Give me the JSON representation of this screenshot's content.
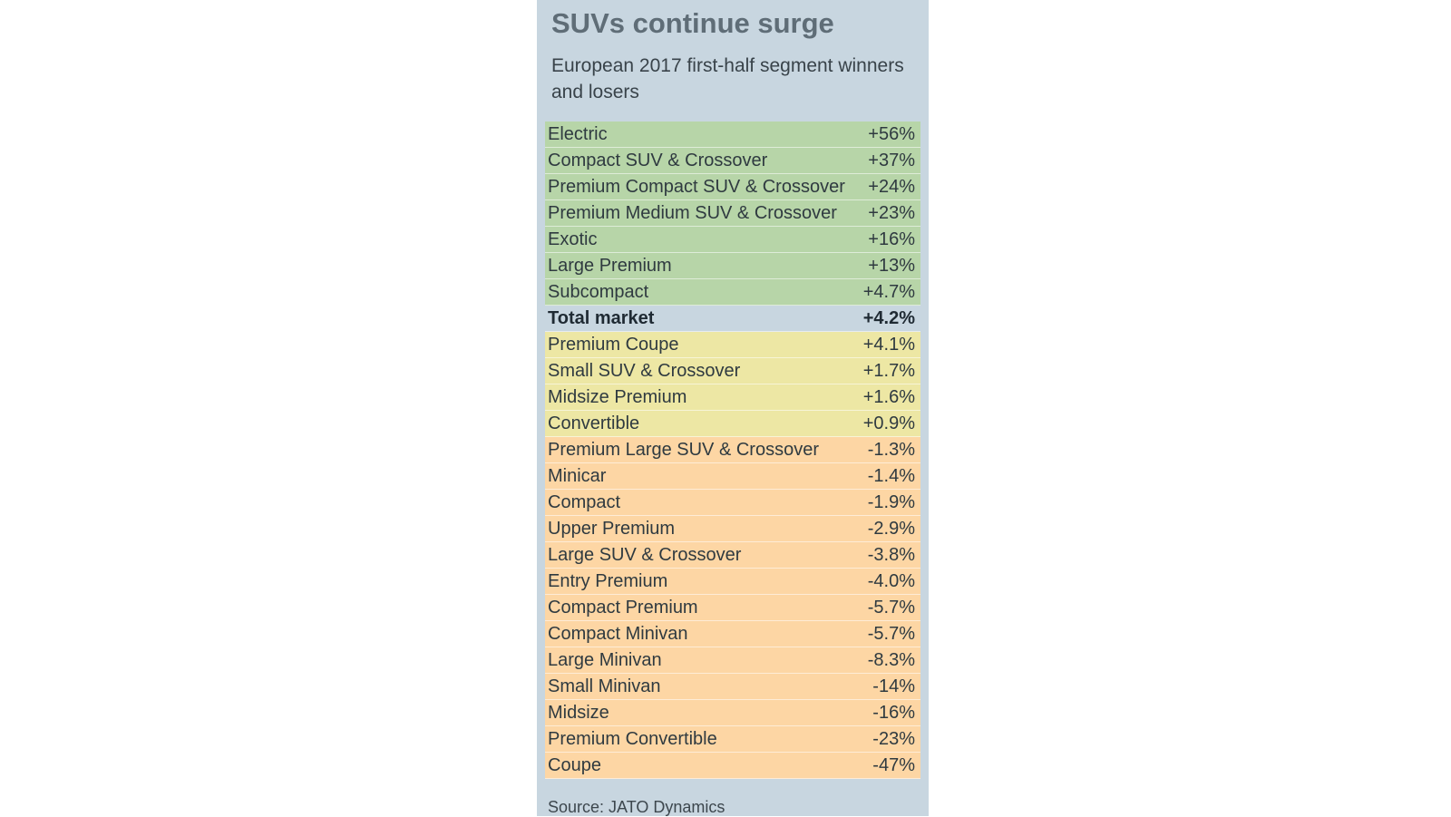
{
  "chart_data": {
    "type": "table",
    "title": "SUVs continue surge",
    "subtitle": "European 2017 first-half segment winners and losers",
    "source": "Source: JATO Dynamics",
    "colors": {
      "gain": "#b7d5a8",
      "small_gain": "#ede7a4",
      "loss": "#fdd6a4",
      "total": "#c8d6e0",
      "panel": "#c8d6e0"
    },
    "rows": [
      {
        "label": "Electric",
        "value": 56,
        "display": "+56%",
        "group": "green"
      },
      {
        "label": "Compact SUV & Crossover",
        "value": 37,
        "display": "+37%",
        "group": "green"
      },
      {
        "label": "Premium Compact SUV & Crossover",
        "value": 24,
        "display": "+24%",
        "group": "green"
      },
      {
        "label": "Premium Medium SUV & Crossover",
        "value": 23,
        "display": "+23%",
        "group": "green"
      },
      {
        "label": "Exotic",
        "value": 16,
        "display": "+16%",
        "group": "green"
      },
      {
        "label": "Large Premium",
        "value": 13,
        "display": "+13%",
        "group": "green"
      },
      {
        "label": "Subcompact",
        "value": 4.7,
        "display": "+4.7%",
        "group": "green"
      },
      {
        "label": "Total market",
        "value": 4.2,
        "display": "+4.2%",
        "group": "total"
      },
      {
        "label": "Premium Coupe",
        "value": 4.1,
        "display": "+4.1%",
        "group": "yellow"
      },
      {
        "label": "Small SUV & Crossover",
        "value": 1.7,
        "display": "+1.7%",
        "group": "yellow"
      },
      {
        "label": "Midsize Premium",
        "value": 1.6,
        "display": "+1.6%",
        "group": "yellow"
      },
      {
        "label": "Convertible",
        "value": 0.9,
        "display": "+0.9%",
        "group": "yellow"
      },
      {
        "label": "Premium Large SUV & Crossover",
        "value": -1.3,
        "display": "-1.3%",
        "group": "orange"
      },
      {
        "label": "Minicar",
        "value": -1.4,
        "display": "-1.4%",
        "group": "orange"
      },
      {
        "label": "Compact",
        "value": -1.9,
        "display": "-1.9%",
        "group": "orange"
      },
      {
        "label": "Upper Premium",
        "value": -2.9,
        "display": "-2.9%",
        "group": "orange"
      },
      {
        "label": "Large SUV & Crossover",
        "value": -3.8,
        "display": "-3.8%",
        "group": "orange"
      },
      {
        "label": "Entry Premium",
        "value": -4.0,
        "display": "-4.0%",
        "group": "orange"
      },
      {
        "label": "Compact Premium",
        "value": -5.7,
        "display": "-5.7%",
        "group": "orange"
      },
      {
        "label": "Compact Minivan",
        "value": -5.7,
        "display": "-5.7%",
        "group": "orange"
      },
      {
        "label": "Large Minivan",
        "value": -8.3,
        "display": "-8.3%",
        "group": "orange"
      },
      {
        "label": "Small Minivan",
        "value": -14,
        "display": "-14%",
        "group": "orange"
      },
      {
        "label": "Midsize",
        "value": -16,
        "display": "-16%",
        "group": "orange"
      },
      {
        "label": "Premium Convertible",
        "value": -23,
        "display": "-23%",
        "group": "orange"
      },
      {
        "label": "Coupe",
        "value": -47,
        "display": "-47%",
        "group": "orange"
      }
    ]
  }
}
